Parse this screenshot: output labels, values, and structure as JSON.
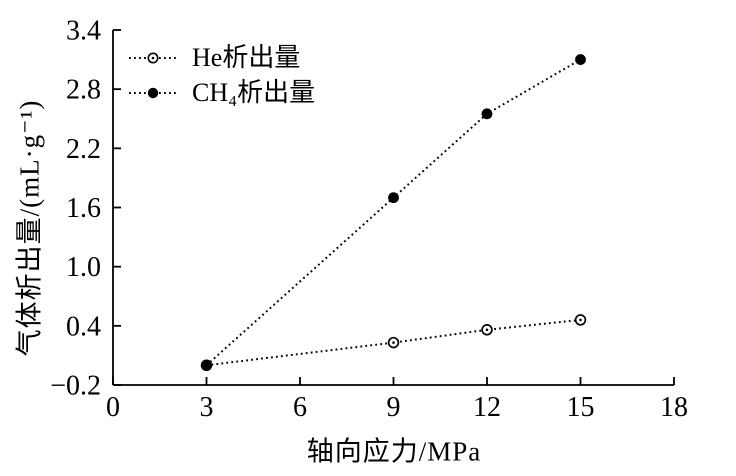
{
  "page": {
    "background": "#ffffff",
    "ink_color": "#000000"
  },
  "chart_data": {
    "type": "line",
    "title": "",
    "xlabel": "轴向应力/MPa",
    "ylabel": "气体析出量/(mL·g⁻¹)",
    "xlim": [
      0,
      18
    ],
    "ylim": [
      -0.2,
      3.4
    ],
    "grid": false,
    "legend_position": "upper-left-inside",
    "legend_border": false,
    "xticks": {
      "values": [
        0,
        3,
        6,
        9,
        12,
        15,
        18
      ],
      "labels": [
        "0",
        "3",
        "6",
        "9",
        "12",
        "15",
        "18"
      ]
    },
    "yticks": {
      "values": [
        3.4,
        2.8,
        2.2,
        1.6,
        1.0,
        0.4,
        -0.2
      ],
      "labels": [
        "3.4",
        "2.8",
        "2.2",
        "1.6",
        "1.0",
        "0.4",
        "−0.2"
      ]
    },
    "x": [
      3,
      9,
      12,
      15
    ],
    "series": [
      {
        "id": "he",
        "name": "He析出量",
        "marker": "open-circle",
        "line_style": "dotted",
        "color": "#000000",
        "values": [
          0.0,
          0.23,
          0.36,
          0.46
        ]
      },
      {
        "id": "ch4",
        "name": "CH₄析出量",
        "marker": "filled-circle",
        "line_style": "dotted",
        "color": "#000000",
        "values": [
          0.0,
          1.7,
          2.55,
          3.1
        ]
      }
    ]
  }
}
